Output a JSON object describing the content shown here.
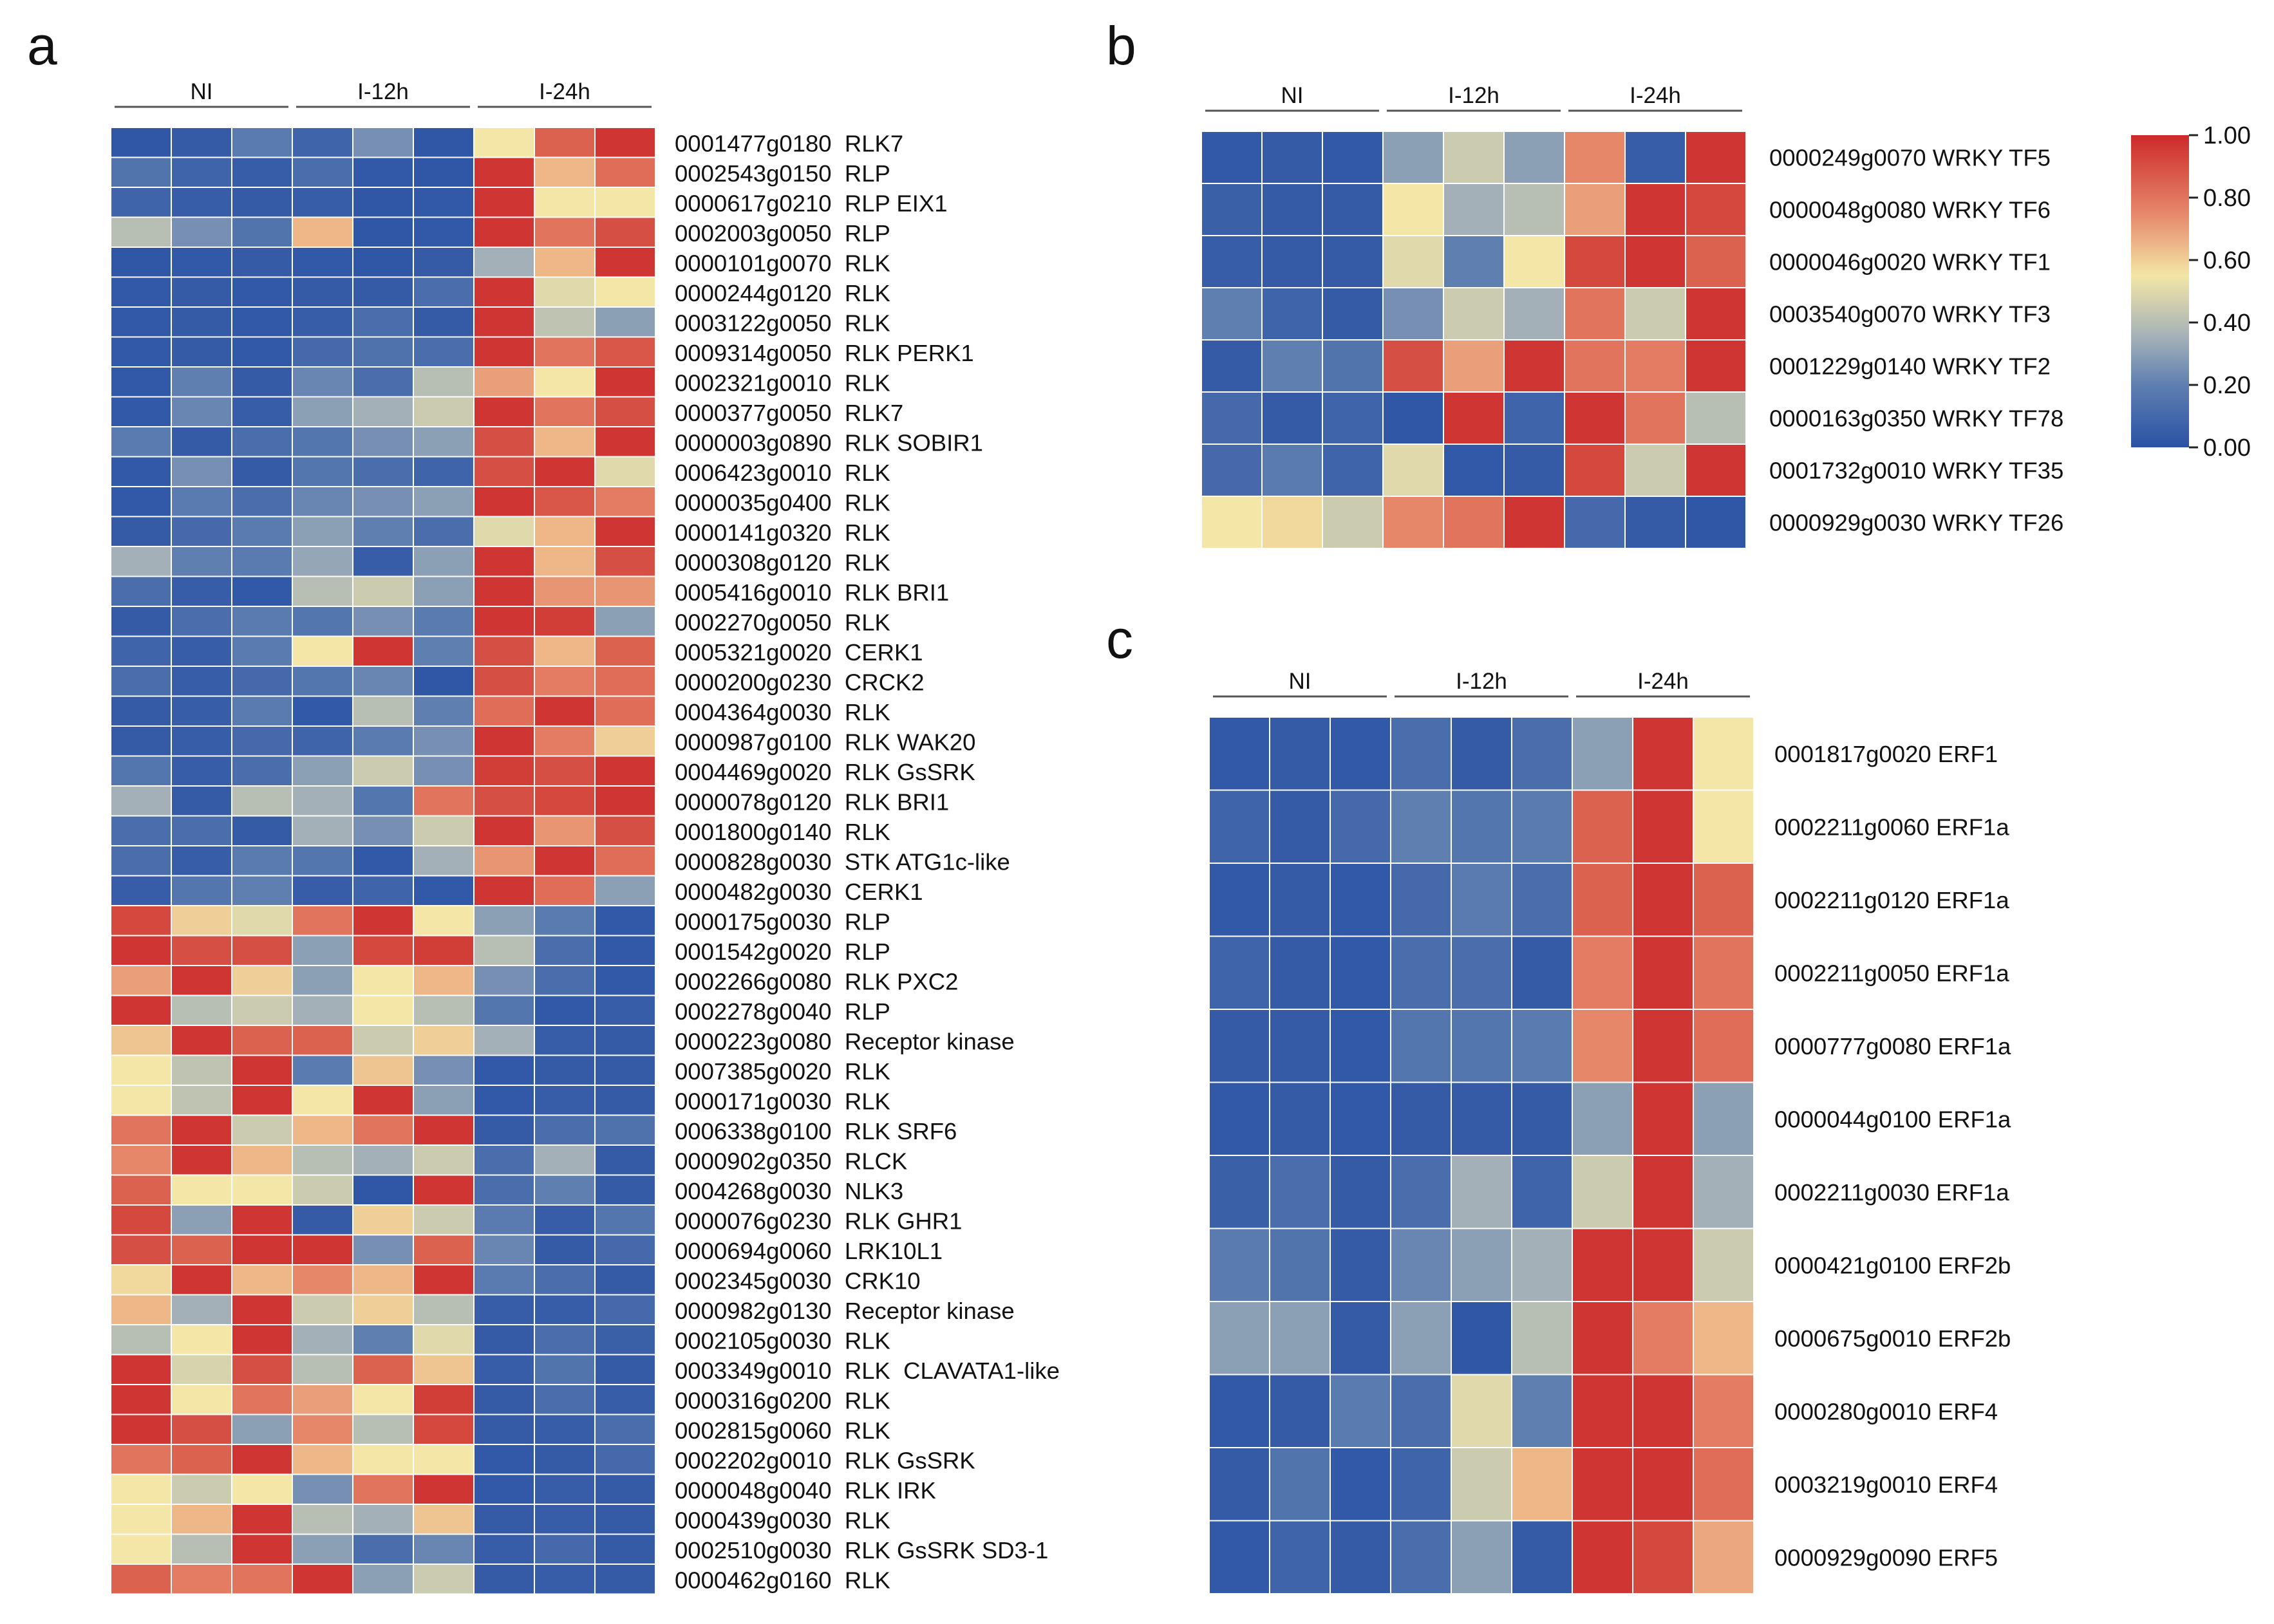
{
  "colors": {
    "low": "#2a52a5",
    "mid": "#f3e6a6",
    "high": "#cc2a2a"
  },
  "colorbar": {
    "ticks": [
      "1.00",
      "0.80",
      "0.60",
      "0.40",
      "0.20",
      "0.00"
    ]
  },
  "chart_data": [
    {
      "panel": "a",
      "type": "heatmap",
      "groups": [
        "NI",
        "I-12h",
        "I-24h"
      ],
      "rows": [
        {
          "label": "0001477g0180  RLK7",
          "values": [
            0.02,
            0.04,
            0.18,
            0.08,
            0.25,
            0.02,
            0.55,
            0.85,
            0.97
          ]
        },
        {
          "label": "0002543g0150  RLP",
          "values": [
            0.15,
            0.08,
            0.05,
            0.12,
            0.03,
            0.02,
            0.97,
            0.65,
            0.82
          ]
        },
        {
          "label": "0000617g0210  RLP EIX1",
          "values": [
            0.08,
            0.05,
            0.04,
            0.05,
            0.02,
            0.03,
            0.97,
            0.55,
            0.55
          ]
        },
        {
          "label": "0002003g0050  RLP",
          "values": [
            0.4,
            0.25,
            0.15,
            0.65,
            0.02,
            0.03,
            0.97,
            0.8,
            0.9
          ]
        },
        {
          "label": "0000101g0070  RLK",
          "values": [
            0.02,
            0.03,
            0.04,
            0.03,
            0.02,
            0.04,
            0.35,
            0.65,
            0.97
          ]
        },
        {
          "label": "0000244g0120  RLK",
          "values": [
            0.03,
            0.04,
            0.03,
            0.04,
            0.04,
            0.12,
            0.97,
            0.5,
            0.55
          ]
        },
        {
          "label": "0003122g0050  RLK",
          "values": [
            0.03,
            0.04,
            0.03,
            0.05,
            0.12,
            0.04,
            0.97,
            0.42,
            0.3
          ]
        },
        {
          "label": "0009314g0050  RLK PERK1",
          "values": [
            0.03,
            0.04,
            0.03,
            0.1,
            0.14,
            0.12,
            0.97,
            0.8,
            0.88
          ]
        },
        {
          "label": "0002321g0010  RLK",
          "values": [
            0.03,
            0.2,
            0.04,
            0.22,
            0.12,
            0.4,
            0.7,
            0.55,
            0.97
          ]
        },
        {
          "label": "0000377g0050  RLK7",
          "values": [
            0.03,
            0.22,
            0.05,
            0.3,
            0.35,
            0.45,
            0.97,
            0.8,
            0.9
          ]
        },
        {
          "label": "0000003g0890  RLK SOBIR1",
          "values": [
            0.18,
            0.04,
            0.12,
            0.16,
            0.25,
            0.3,
            0.9,
            0.65,
            0.97
          ]
        },
        {
          "label": "0006423g0010  RLK",
          "values": [
            0.03,
            0.25,
            0.04,
            0.16,
            0.12,
            0.08,
            0.9,
            0.97,
            0.5
          ]
        },
        {
          "label": "0000035g0400  RLK",
          "values": [
            0.03,
            0.18,
            0.12,
            0.22,
            0.25,
            0.3,
            0.97,
            0.88,
            0.78
          ]
        },
        {
          "label": "0000141g0320  RLK",
          "values": [
            0.04,
            0.1,
            0.18,
            0.3,
            0.2,
            0.12,
            0.5,
            0.65,
            0.97
          ]
        },
        {
          "label": "0000308g0120  RLK",
          "values": [
            0.35,
            0.2,
            0.18,
            0.32,
            0.05,
            0.3,
            0.97,
            0.65,
            0.9
          ]
        },
        {
          "label": "0005416g0010  RLK BRI1",
          "values": [
            0.12,
            0.05,
            0.03,
            0.4,
            0.45,
            0.3,
            0.97,
            0.72,
            0.72
          ]
        },
        {
          "label": "0002270g0050  RLK",
          "values": [
            0.04,
            0.12,
            0.18,
            0.16,
            0.25,
            0.18,
            0.97,
            0.95,
            0.3
          ]
        },
        {
          "label": "0005321g0020  CERK1",
          "values": [
            0.08,
            0.05,
            0.18,
            0.55,
            0.97,
            0.2,
            0.9,
            0.65,
            0.85
          ]
        },
        {
          "label": "0000200g0230  CRCK2",
          "values": [
            0.12,
            0.05,
            0.1,
            0.16,
            0.22,
            0.02,
            0.9,
            0.78,
            0.82
          ]
        },
        {
          "label": "0004364g0030  RLK",
          "values": [
            0.04,
            0.05,
            0.18,
            0.03,
            0.4,
            0.2,
            0.82,
            0.97,
            0.82
          ]
        },
        {
          "label": "0000987g0100  RLK WAK20",
          "values": [
            0.04,
            0.05,
            0.1,
            0.08,
            0.18,
            0.25,
            0.97,
            0.78,
            0.6
          ]
        },
        {
          "label": "0004469g0020  RLK GsSRK",
          "values": [
            0.16,
            0.05,
            0.12,
            0.3,
            0.45,
            0.25,
            0.95,
            0.9,
            0.97
          ]
        },
        {
          "label": "0000078g0120  RLK BRI1",
          "values": [
            0.35,
            0.04,
            0.4,
            0.35,
            0.16,
            0.8,
            0.9,
            0.92,
            0.97
          ]
        },
        {
          "label": "0001800g0140  RLK",
          "values": [
            0.12,
            0.12,
            0.04,
            0.35,
            0.25,
            0.45,
            0.97,
            0.72,
            0.9
          ]
        },
        {
          "label": "0000828g0030  STK ATG1c-like",
          "values": [
            0.12,
            0.05,
            0.18,
            0.16,
            0.03,
            0.35,
            0.72,
            0.97,
            0.82
          ]
        },
        {
          "label": "0000482g0030  CERK1",
          "values": [
            0.05,
            0.16,
            0.2,
            0.05,
            0.08,
            0.03,
            0.97,
            0.82,
            0.3
          ]
        },
        {
          "label": "0000175g0030  RLP",
          "values": [
            0.92,
            0.6,
            0.5,
            0.8,
            0.97,
            0.55,
            0.3,
            0.18,
            0.03
          ]
        },
        {
          "label": "0001542g0020  RLP",
          "values": [
            0.97,
            0.9,
            0.9,
            0.3,
            0.92,
            0.95,
            0.4,
            0.12,
            0.03
          ]
        },
        {
          "label": "0002266g0080  RLK PXC2",
          "values": [
            0.7,
            0.97,
            0.6,
            0.3,
            0.55,
            0.65,
            0.25,
            0.12,
            0.03
          ]
        },
        {
          "label": "0002278g0040  RLP",
          "values": [
            0.97,
            0.4,
            0.45,
            0.35,
            0.55,
            0.4,
            0.16,
            0.03,
            0.05
          ]
        },
        {
          "label": "0000223g0080  Receptor kinase",
          "values": [
            0.62,
            0.97,
            0.85,
            0.85,
            0.45,
            0.6,
            0.35,
            0.05,
            0.04
          ]
        },
        {
          "label": "0007385g0020  RLK",
          "values": [
            0.55,
            0.42,
            0.97,
            0.18,
            0.62,
            0.25,
            0.03,
            0.04,
            0.04
          ]
        },
        {
          "label": "0000171g0030  RLK",
          "values": [
            0.55,
            0.42,
            0.97,
            0.55,
            0.97,
            0.3,
            0.03,
            0.05,
            0.04
          ]
        },
        {
          "label": "0006338g0100  RLK SRF6",
          "values": [
            0.8,
            0.97,
            0.45,
            0.65,
            0.8,
            0.97,
            0.04,
            0.12,
            0.14
          ]
        },
        {
          "label": "0000902g0350  RLCK",
          "values": [
            0.75,
            0.97,
            0.65,
            0.4,
            0.35,
            0.45,
            0.12,
            0.35,
            0.04
          ]
        },
        {
          "label": "0004268g0030  NLK3",
          "values": [
            0.85,
            0.55,
            0.55,
            0.45,
            0.02,
            0.97,
            0.12,
            0.2,
            0.04
          ]
        },
        {
          "label": "0000076g0230  RLK GHR1",
          "values": [
            0.92,
            0.3,
            0.97,
            0.04,
            0.6,
            0.45,
            0.18,
            0.05,
            0.16
          ]
        },
        {
          "label": "0000694g0060  LRK10L1",
          "values": [
            0.9,
            0.85,
            0.97,
            0.97,
            0.25,
            0.85,
            0.22,
            0.04,
            0.1
          ]
        },
        {
          "label": "0002345g0030  CRK10",
          "values": [
            0.58,
            0.97,
            0.65,
            0.75,
            0.65,
            0.97,
            0.18,
            0.12,
            0.04
          ]
        },
        {
          "label": "0000982g0130  Receptor kinase",
          "values": [
            0.65,
            0.35,
            0.97,
            0.45,
            0.6,
            0.4,
            0.05,
            0.05,
            0.1
          ]
        },
        {
          "label": "0002105g0030  RLK",
          "values": [
            0.4,
            0.55,
            0.97,
            0.35,
            0.2,
            0.5,
            0.04,
            0.12,
            0.06
          ]
        },
        {
          "label": "0003349g0010  RLK  CLAVATA1-like",
          "values": [
            0.97,
            0.48,
            0.9,
            0.4,
            0.85,
            0.62,
            0.05,
            0.15,
            0.04
          ]
        },
        {
          "label": "0000316g0200  RLK",
          "values": [
            0.97,
            0.55,
            0.8,
            0.7,
            0.55,
            0.95,
            0.04,
            0.12,
            0.05
          ]
        },
        {
          "label": "0002815g0060  RLK",
          "values": [
            0.97,
            0.9,
            0.3,
            0.75,
            0.4,
            0.92,
            0.04,
            0.05,
            0.12
          ]
        },
        {
          "label": "0002202g0010  RLK GsSRK",
          "values": [
            0.8,
            0.85,
            0.97,
            0.65,
            0.55,
            0.55,
            0.03,
            0.04,
            0.1
          ]
        },
        {
          "label": "0000048g0040  RLK IRK",
          "values": [
            0.55,
            0.45,
            0.55,
            0.25,
            0.8,
            0.97,
            0.03,
            0.05,
            0.04
          ]
        },
        {
          "label": "0000439g0030  RLK",
          "values": [
            0.55,
            0.65,
            0.97,
            0.4,
            0.35,
            0.62,
            0.04,
            0.05,
            0.04
          ]
        },
        {
          "label": "0002510g0030  RLK GsSRK SD3-1",
          "values": [
            0.55,
            0.4,
            0.97,
            0.3,
            0.12,
            0.22,
            0.05,
            0.1,
            0.04
          ]
        },
        {
          "label": "0000462g0160  RLK",
          "values": [
            0.85,
            0.78,
            0.8,
            0.97,
            0.3,
            0.45,
            0.04,
            0.05,
            0.04
          ]
        }
      ]
    },
    {
      "panel": "b",
      "type": "heatmap",
      "groups": [
        "NI",
        "I-12h",
        "I-24h"
      ],
      "rows": [
        {
          "label": "0000249g0070 WRKY TF5",
          "values": [
            0.03,
            0.04,
            0.03,
            0.3,
            0.45,
            0.3,
            0.75,
            0.05,
            0.97
          ]
        },
        {
          "label": "0000048g0080 WRKY TF6",
          "values": [
            0.06,
            0.04,
            0.04,
            0.55,
            0.35,
            0.4,
            0.7,
            0.97,
            0.92
          ]
        },
        {
          "label": "0000046g0020 WRKY TF1",
          "values": [
            0.05,
            0.04,
            0.04,
            0.5,
            0.2,
            0.55,
            0.92,
            0.97,
            0.85
          ]
        },
        {
          "label": "0003540g0070 WRKY TF3",
          "values": [
            0.2,
            0.08,
            0.04,
            0.25,
            0.45,
            0.35,
            0.8,
            0.45,
            0.97
          ]
        },
        {
          "label": "0001229g0140 WRKY TF2",
          "values": [
            0.04,
            0.2,
            0.15,
            0.9,
            0.7,
            0.97,
            0.8,
            0.78,
            0.97
          ]
        },
        {
          "label": "0000163g0350 WRKY TF78",
          "values": [
            0.1,
            0.04,
            0.08,
            0.02,
            0.97,
            0.08,
            0.97,
            0.8,
            0.4
          ]
        },
        {
          "label": "0001732g0010 WRKY TF35",
          "values": [
            0.1,
            0.18,
            0.08,
            0.5,
            0.03,
            0.04,
            0.92,
            0.45,
            0.97
          ]
        },
        {
          "label": "0000929g0030 WRKY TF26",
          "values": [
            0.55,
            0.58,
            0.45,
            0.75,
            0.8,
            0.97,
            0.1,
            0.04,
            0.02
          ]
        }
      ]
    },
    {
      "panel": "c",
      "type": "heatmap",
      "groups": [
        "NI",
        "I-12h",
        "I-24h"
      ],
      "rows": [
        {
          "label": "0001817g0020 ERF1",
          "values": [
            0.03,
            0.04,
            0.03,
            0.12,
            0.04,
            0.12,
            0.3,
            0.97,
            0.55
          ]
        },
        {
          "label": "0002211g0060 ERF1a",
          "values": [
            0.08,
            0.04,
            0.1,
            0.2,
            0.16,
            0.18,
            0.85,
            0.97,
            0.55
          ]
        },
        {
          "label": "0002211g0120 ERF1a",
          "values": [
            0.03,
            0.04,
            0.03,
            0.1,
            0.18,
            0.12,
            0.85,
            0.97,
            0.85
          ]
        },
        {
          "label": "0002211g0050 ERF1a",
          "values": [
            0.08,
            0.04,
            0.03,
            0.12,
            0.12,
            0.04,
            0.78,
            0.97,
            0.8
          ]
        },
        {
          "label": "0000777g0080 ERF1a",
          "values": [
            0.04,
            0.04,
            0.03,
            0.16,
            0.16,
            0.18,
            0.75,
            0.97,
            0.82
          ]
        },
        {
          "label": "0000044g0100 ERF1a",
          "values": [
            0.03,
            0.04,
            0.03,
            0.04,
            0.04,
            0.04,
            0.3,
            0.97,
            0.3
          ]
        },
        {
          "label": "0002211g0030 ERF1a",
          "values": [
            0.06,
            0.12,
            0.04,
            0.12,
            0.35,
            0.08,
            0.45,
            0.97,
            0.35
          ]
        },
        {
          "label": "0000421g0100 ERF2b",
          "values": [
            0.18,
            0.15,
            0.04,
            0.22,
            0.3,
            0.35,
            0.97,
            0.97,
            0.45
          ]
        },
        {
          "label": "0000675g0010 ERF2b",
          "values": [
            0.3,
            0.3,
            0.04,
            0.3,
            0.02,
            0.4,
            0.97,
            0.78,
            0.65
          ]
        },
        {
          "label": "0000280g0010 ERF4",
          "values": [
            0.03,
            0.04,
            0.18,
            0.12,
            0.5,
            0.2,
            0.97,
            0.97,
            0.78
          ]
        },
        {
          "label": "0003219g0010 ERF4",
          "values": [
            0.04,
            0.15,
            0.03,
            0.08,
            0.45,
            0.65,
            0.97,
            0.97,
            0.82
          ]
        },
        {
          "label": "0000929g0090 ERF5",
          "values": [
            0.03,
            0.08,
            0.04,
            0.12,
            0.3,
            0.04,
            0.97,
            0.92,
            0.68
          ]
        }
      ]
    }
  ]
}
